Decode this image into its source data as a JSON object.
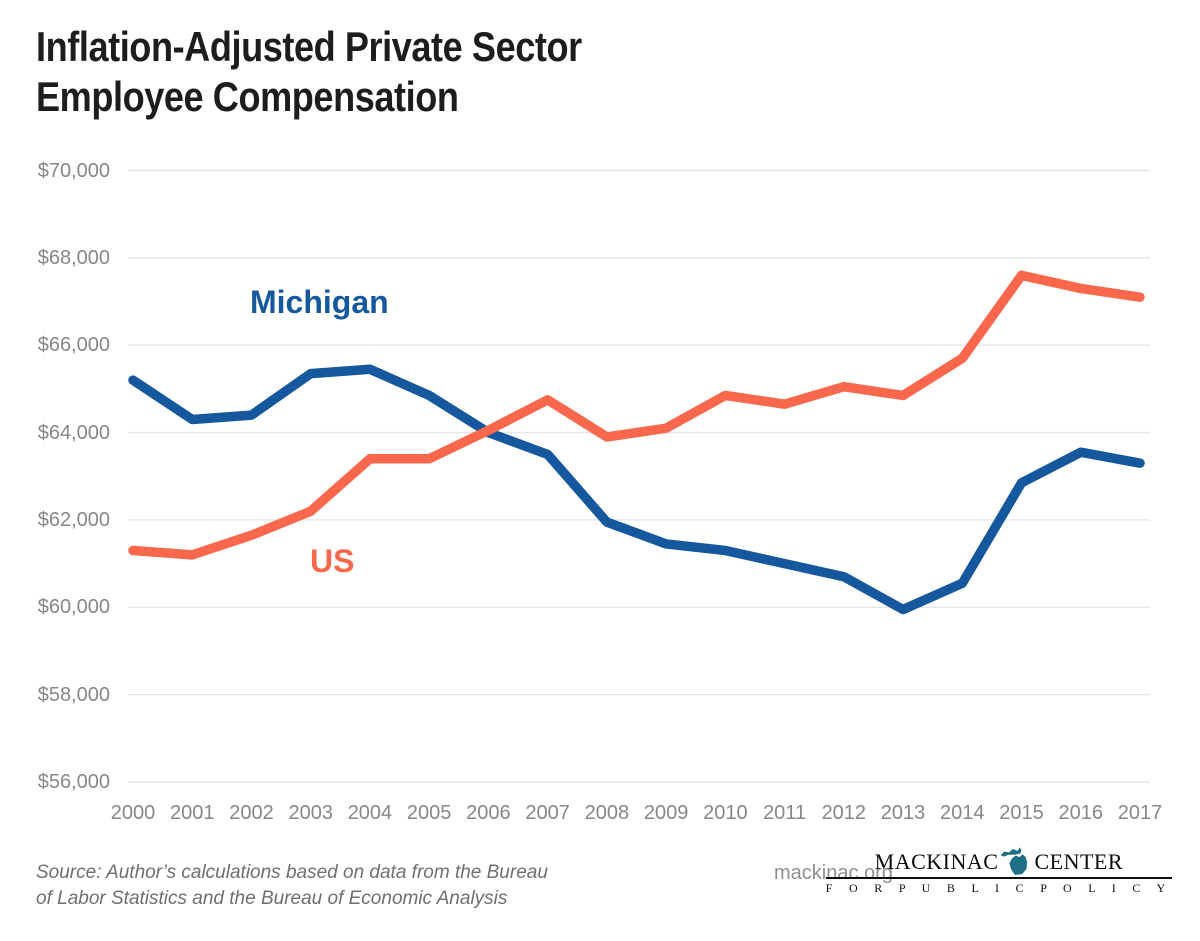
{
  "title": {
    "line1": "Inflation-Adjusted Private Sector",
    "line2": "Employee Compensation"
  },
  "chart_data": {
    "type": "line",
    "x": [
      2000,
      2001,
      2002,
      2003,
      2004,
      2005,
      2006,
      2007,
      2008,
      2009,
      2010,
      2011,
      2012,
      2013,
      2014,
      2015,
      2016,
      2017
    ],
    "series": [
      {
        "name": "Michigan",
        "color": "#16589E",
        "values": [
          65200,
          64300,
          64400,
          65350,
          65450,
          64850,
          64000,
          63500,
          61950,
          61450,
          61300,
          61000,
          60700,
          59950,
          60550,
          62850,
          63550,
          63300
        ]
      },
      {
        "name": "US",
        "color": "#F9684D",
        "values": [
          61300,
          61200,
          61650,
          62200,
          63400,
          63400,
          64050,
          64750,
          63900,
          64100,
          64850,
          64650,
          65050,
          64850,
          65700,
          67600,
          67300,
          67100
        ]
      }
    ],
    "title": "Inflation-Adjusted Private Sector Employee Compensation",
    "xlabel": "",
    "ylabel": "",
    "ylim": [
      56000,
      70000
    ],
    "grid": "horizontal-only",
    "legend_position": "inline-labels-on-chart",
    "yticks": [
      {
        "value": 70000,
        "label": "$70,000"
      },
      {
        "value": 68000,
        "label": "$68,000"
      },
      {
        "value": 66000,
        "label": "$66,000"
      },
      {
        "value": 64000,
        "label": "$64,000"
      },
      {
        "value": 62000,
        "label": "$62,000"
      },
      {
        "value": 60000,
        "label": "$60,000"
      },
      {
        "value": 58000,
        "label": "$58,000"
      },
      {
        "value": 56000,
        "label": "$56,000"
      }
    ],
    "xtick_labels": [
      "2000",
      "2001",
      "2002",
      "2003",
      "2004",
      "2005",
      "2006",
      "2007",
      "2008",
      "2009",
      "2010",
      "2011",
      "2012",
      "2013",
      "2014",
      "2015",
      "2016",
      "2017"
    ]
  },
  "annotations": {
    "michigan_label": "Michigan",
    "us_label": "US"
  },
  "footer": {
    "source_line1": "Source: Author’s calculations based on data from the Bureau",
    "source_line2": "of Labor Statistics and the Bureau of Economic Analysis",
    "website": "mackinac.org",
    "logo": {
      "word1": "MACKINAC",
      "word2": "CENTER",
      "subtitle": "F O R   P U B L I C   P O L I C Y",
      "icon": "michigan-state-icon",
      "icon_color": "#1E6F85"
    }
  },
  "colors": {
    "background": "#ffffff",
    "title_text": "#1d1d1b",
    "axis_text": "#878787",
    "gridline": "#e6e6e6",
    "source_text": "#6f6f6f",
    "website_text": "#8f8f8f",
    "logo_text": "#0c0c0c"
  }
}
